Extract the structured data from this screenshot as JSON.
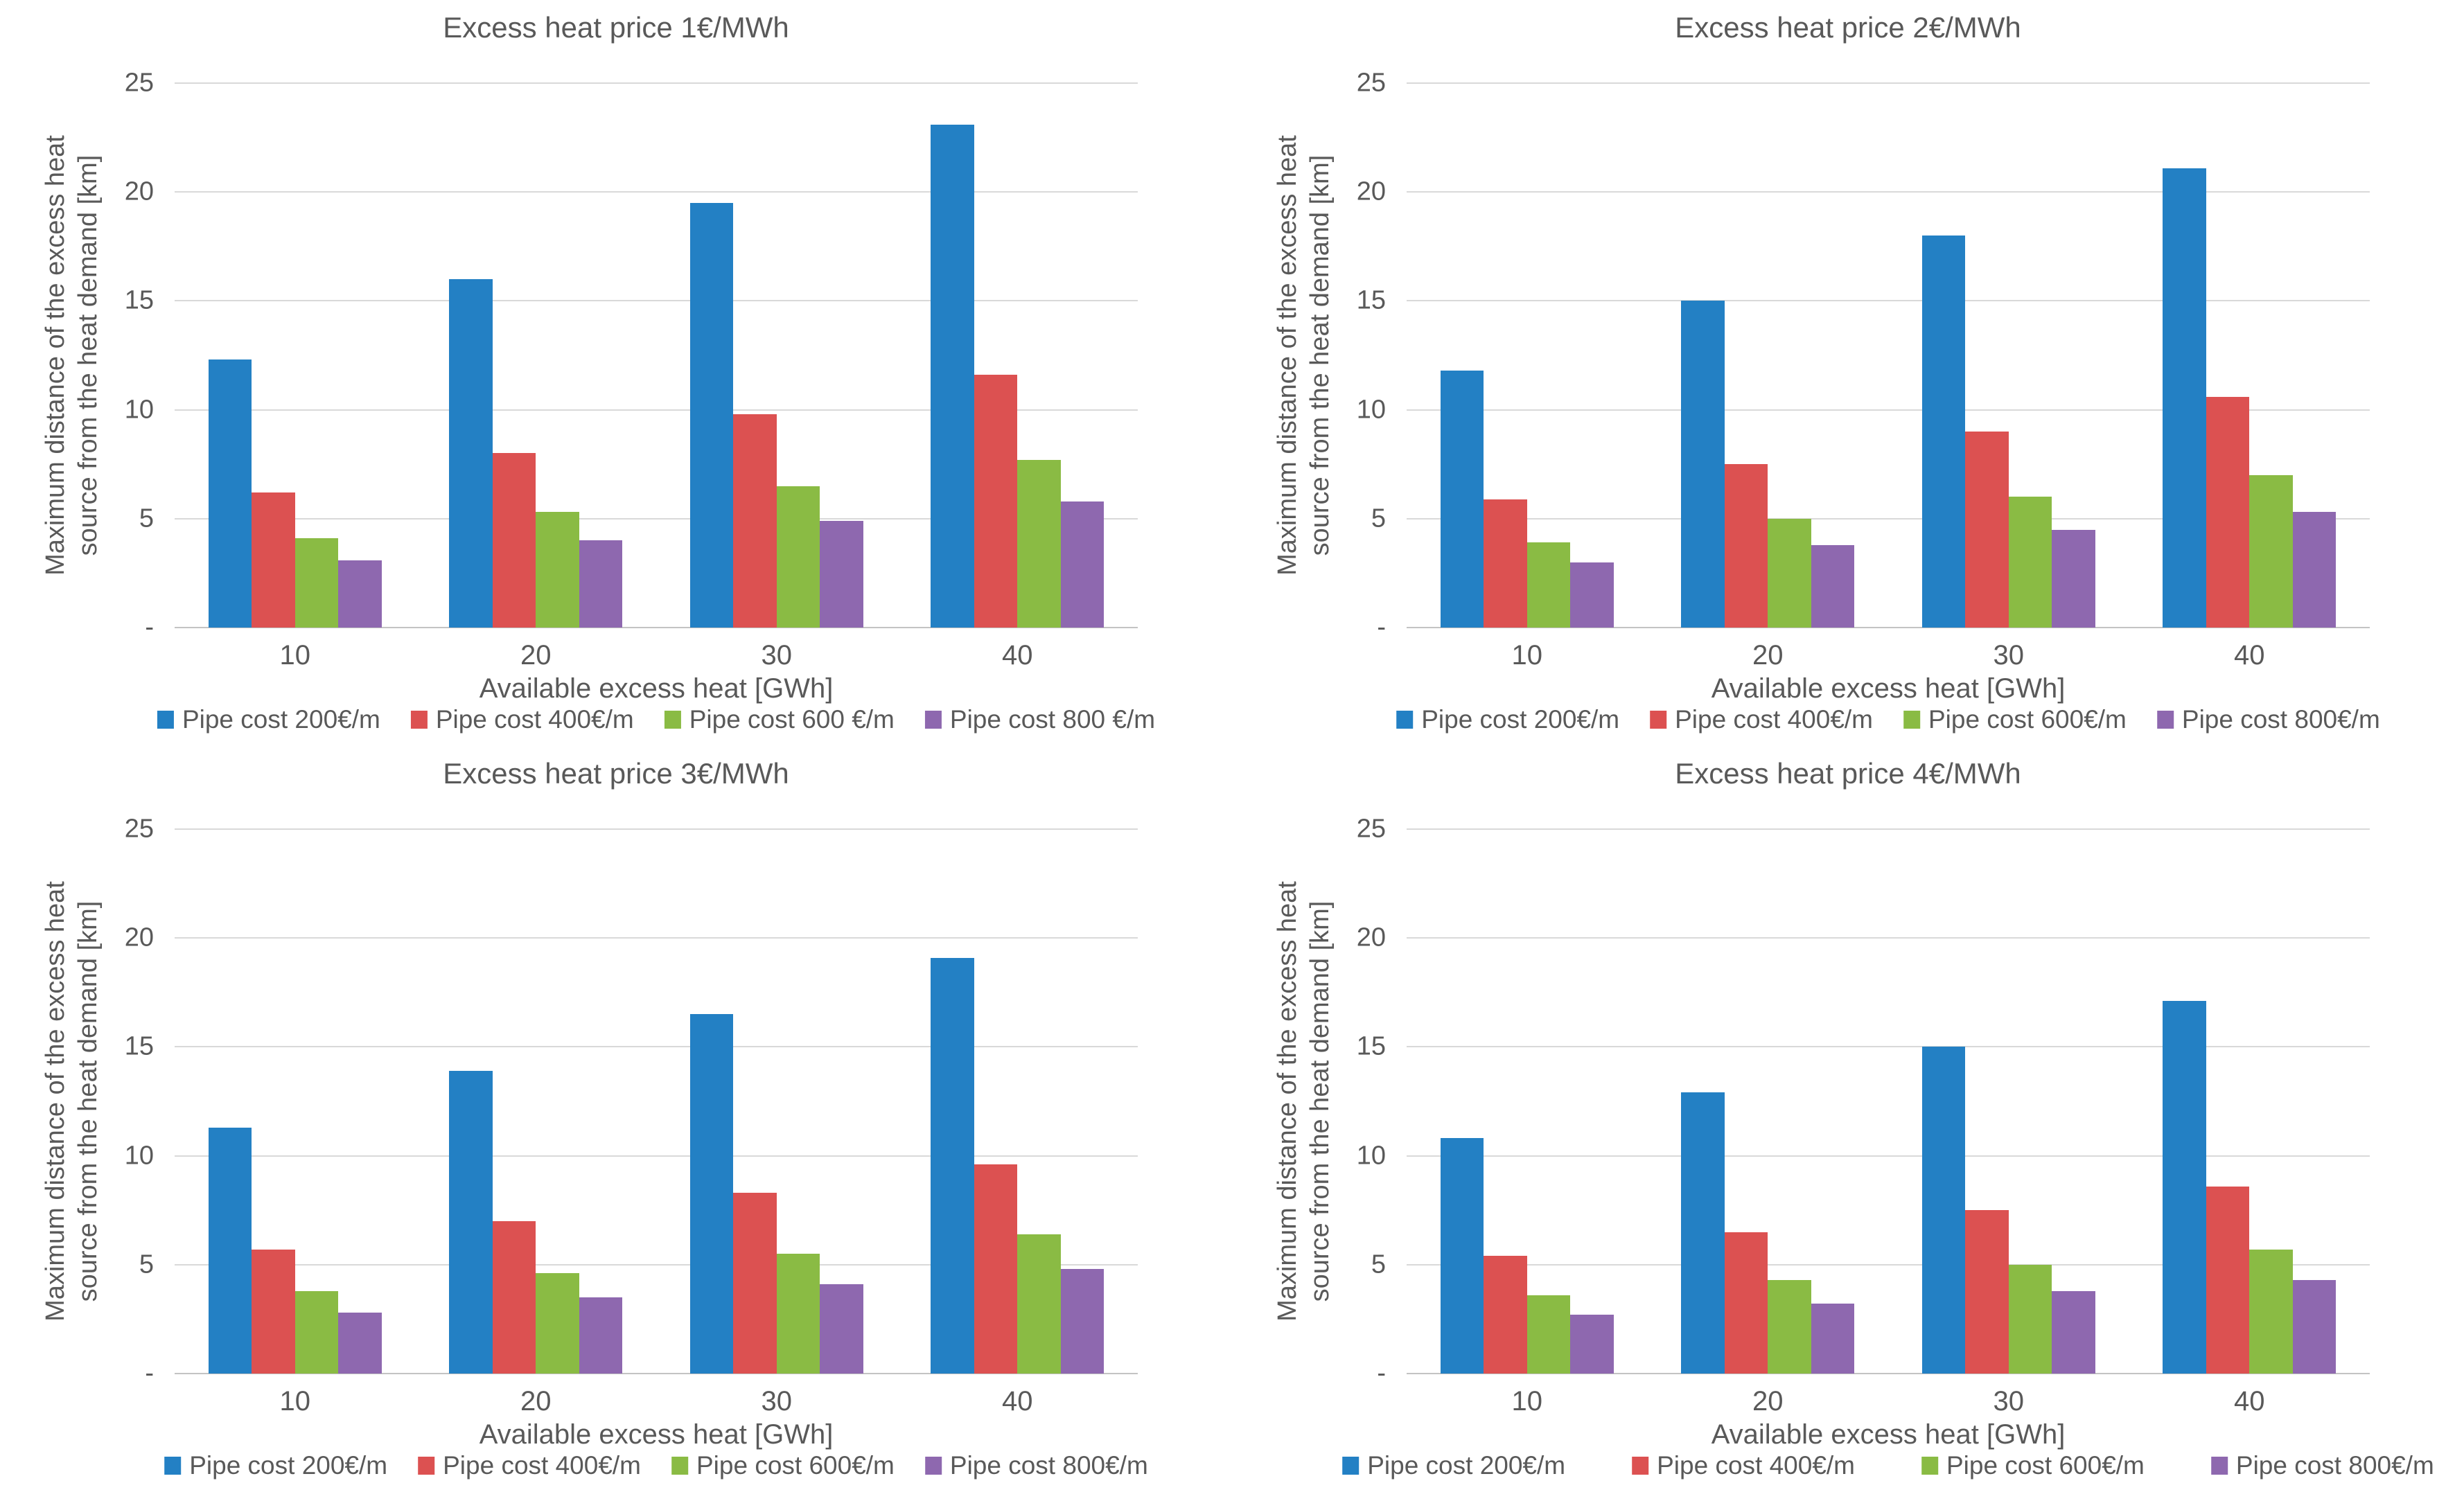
{
  "page": {
    "background": "#ffffff",
    "text_color": "#595959",
    "gridline_color": "#d9d9d9"
  },
  "shared": {
    "series_colors": {
      "pipe_200": "#2380c4",
      "pipe_400": "#dc5151",
      "pipe_600": "#8abb44",
      "pipe_800": "#8e68af"
    }
  },
  "chart_data": [
    {
      "type": "bar",
      "title": "Excess heat price 1€/MWh",
      "xlabel": "Available excess heat [GWh]",
      "ylabel": "Maximum distance of the excess heat source from the heat demand [km]",
      "ylabel_lines": [
        "Maximum distance of the excess heat",
        "source from the heat demand [km]"
      ],
      "ylim": [
        0,
        25
      ],
      "yticks": [
        0,
        5,
        10,
        15,
        20,
        25
      ],
      "ytick_labels": [
        "-",
        "5",
        "10",
        "15",
        "20",
        "25"
      ],
      "grid": "horizontal",
      "legend_position": "bottom",
      "categories": [
        "10",
        "20",
        "30",
        "40"
      ],
      "series": [
        {
          "name": "Pipe cost 200€/m",
          "color": "#2380c4",
          "values": [
            12.3,
            16.0,
            19.5,
            23.1
          ]
        },
        {
          "name": "Pipe cost 400€/m",
          "color": "#dc5151",
          "values": [
            6.2,
            8.0,
            9.8,
            11.6
          ]
        },
        {
          "name": "Pipe cost 600 €/m",
          "color": "#8abb44",
          "values": [
            4.1,
            5.3,
            6.5,
            7.7
          ]
        },
        {
          "name": "Pipe cost 800 €/m",
          "color": "#8e68af",
          "values": [
            3.1,
            4.0,
            4.9,
            5.8
          ]
        }
      ]
    },
    {
      "type": "bar",
      "title": "Excess heat price 2€/MWh",
      "xlabel": "Available excess heat [GWh]",
      "ylabel": "Maximum distance of the excess heat source from the heat demand [km]",
      "ylabel_lines": [
        "Maximum distance of the excess heat",
        "source from the heat demand [km]"
      ],
      "ylim": [
        0,
        25
      ],
      "yticks": [
        0,
        5,
        10,
        15,
        20,
        25
      ],
      "ytick_labels": [
        "-",
        "5",
        "10",
        "15",
        "20",
        "25"
      ],
      "grid": "horizontal",
      "legend_position": "bottom",
      "categories": [
        "10",
        "20",
        "30",
        "40"
      ],
      "series": [
        {
          "name": "Pipe cost 200€/m",
          "color": "#2380c4",
          "values": [
            11.8,
            15.0,
            18.0,
            21.1
          ]
        },
        {
          "name": "Pipe cost 400€/m",
          "color": "#dc5151",
          "values": [
            5.9,
            7.5,
            9.0,
            10.6
          ]
        },
        {
          "name": "Pipe cost 600€/m",
          "color": "#8abb44",
          "values": [
            3.9,
            5.0,
            6.0,
            7.0
          ]
        },
        {
          "name": "Pipe cost 800€/m",
          "color": "#8e68af",
          "values": [
            3.0,
            3.8,
            4.5,
            5.3
          ]
        }
      ]
    },
    {
      "type": "bar",
      "title": "Excess heat price 3€/MWh",
      "xlabel": "Available excess heat [GWh]",
      "ylabel": "Maximum distance of the excess heat source from the heat demand [km]",
      "ylabel_lines": [
        "Maximum distance of the excess heat",
        "source from the heat demand [km]"
      ],
      "ylim": [
        0,
        25
      ],
      "yticks": [
        0,
        5,
        10,
        15,
        20,
        25
      ],
      "ytick_labels": [
        "-",
        "5",
        "10",
        "15",
        "20",
        "25"
      ],
      "grid": "horizontal",
      "legend_position": "bottom",
      "categories": [
        "10",
        "20",
        "30",
        "40"
      ],
      "series": [
        {
          "name": "Pipe cost 200€/m",
          "color": "#2380c4",
          "values": [
            11.3,
            13.9,
            16.5,
            19.1
          ]
        },
        {
          "name": "Pipe cost 400€/m",
          "color": "#dc5151",
          "values": [
            5.7,
            7.0,
            8.3,
            9.6
          ]
        },
        {
          "name": "Pipe cost 600€/m",
          "color": "#8abb44",
          "values": [
            3.8,
            4.6,
            5.5,
            6.4
          ]
        },
        {
          "name": "Pipe cost 800€/m",
          "color": "#8e68af",
          "values": [
            2.8,
            3.5,
            4.1,
            4.8
          ]
        }
      ]
    },
    {
      "type": "bar",
      "title": "Excess heat price 4€/MWh",
      "xlabel": "Available excess heat [GWh]",
      "ylabel": "Maximum distance of the excess heat source from the heat demand [km]",
      "ylabel_lines": [
        "Maximum distance of the excess heat",
        "source from the heat demand [km]"
      ],
      "ylim": [
        0,
        25
      ],
      "yticks": [
        0,
        5,
        10,
        15,
        20,
        25
      ],
      "ytick_labels": [
        "-",
        "5",
        "10",
        "15",
        "20",
        "25"
      ],
      "grid": "horizontal",
      "legend_position": "bottom",
      "categories": [
        "10",
        "20",
        "30",
        "40"
      ],
      "series": [
        {
          "name": "Pipe cost 200€/m",
          "color": "#2380c4",
          "values": [
            10.8,
            12.9,
            15.0,
            17.1
          ]
        },
        {
          "name": "Pipe cost 400€/m",
          "color": "#dc5151",
          "values": [
            5.4,
            6.5,
            7.5,
            8.6
          ]
        },
        {
          "name": "Pipe cost 600€/m",
          "color": "#8abb44",
          "values": [
            3.6,
            4.3,
            5.0,
            5.7
          ]
        },
        {
          "name": "Pipe cost 800€/m",
          "color": "#8e68af",
          "values": [
            2.7,
            3.2,
            3.8,
            4.3
          ]
        }
      ]
    }
  ]
}
